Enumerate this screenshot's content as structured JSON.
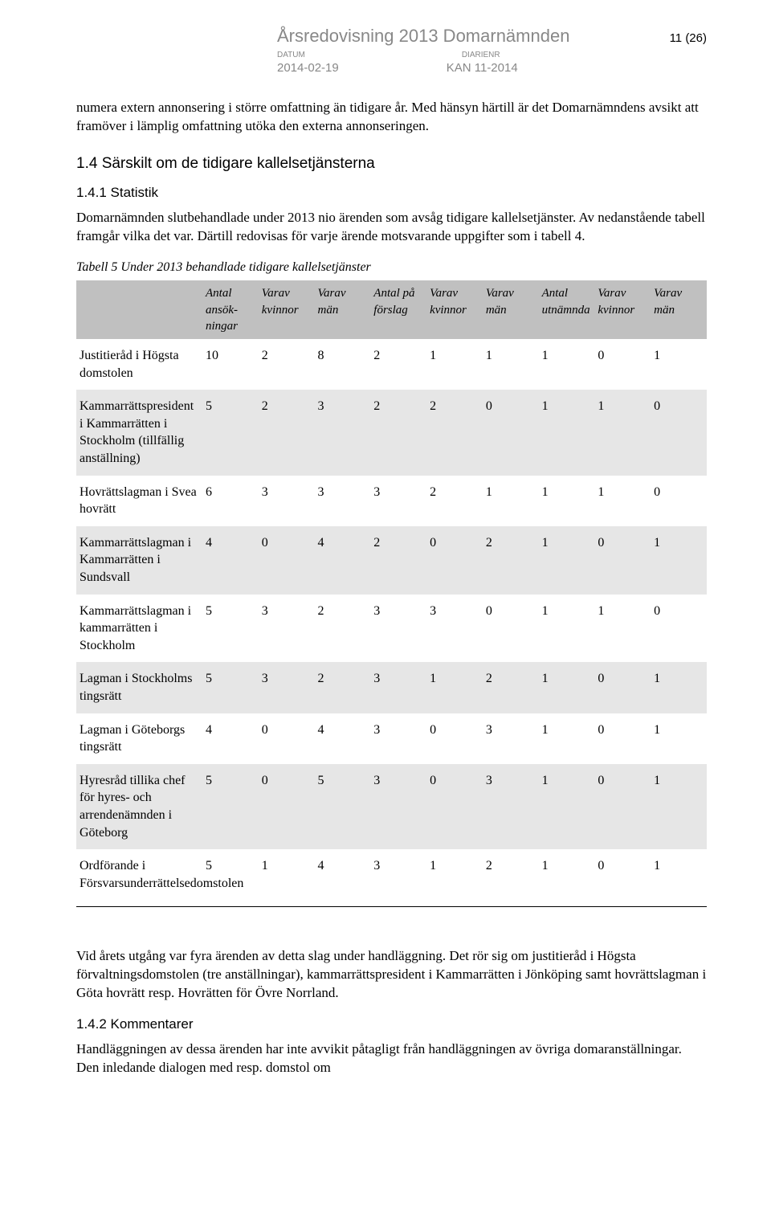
{
  "header": {
    "title": "Årsredovisning 2013 Domarnämnden",
    "page_no": "11 (26)",
    "label_date": "DATUM",
    "label_diary": "DIARIENR",
    "value_date": "2014-02-19",
    "value_diary": "KAN 11-2014"
  },
  "intro_para": "numera extern annonsering i större omfattning än tidigare år. Med hänsyn härtill är det Domarnämndens avsikt att framöver i lämplig omfattning utöka den externa annonseringen.",
  "section_1_4_title": "1.4 Särskilt om de tidigare kallelsetjänsterna",
  "section_1_4_1_title": "1.4.1 Statistik",
  "section_1_4_1_para": "Domarnämnden slutbehandlade under 2013 nio ärenden som avsåg tidigare kallelsetjänster. Av nedanstående tabell framgår vilka det var. Därtill redovisas för varje ärende motsvarande uppgifter som i tabell 4.",
  "table_caption": "Tabell 5 Under 2013 behandlade tidigare kallelsetjänster",
  "table": {
    "columns": [
      "",
      "Antal ansök-ningar",
      "Varav kvinnor",
      "Varav män",
      "Antal på förslag",
      "Varav kvinnor",
      "Varav män",
      "Antal utnämnda",
      "Varav kvinnor",
      "Varav män"
    ],
    "rows": [
      [
        "Justitieråd i Högsta domstolen",
        "10",
        "2",
        "8",
        "2",
        "1",
        "1",
        "1",
        "0",
        "1"
      ],
      [
        "Kammarrättspresident i Kammarrätten i Stockholm (tillfällig anställning)",
        "5",
        "2",
        "3",
        "2",
        "2",
        "0",
        "1",
        "1",
        "0"
      ],
      [
        "Hovrättslagman i Svea hovrätt",
        "6",
        "3",
        "3",
        "3",
        "2",
        "1",
        "1",
        "1",
        "0"
      ],
      [
        "Kammarrättslagman i Kammarrätten i Sundsvall",
        "4",
        "0",
        "4",
        "2",
        "0",
        "2",
        "1",
        "0",
        "1"
      ],
      [
        "Kammarrättslagman i kammarrätten i Stockholm",
        "5",
        "3",
        "2",
        "3",
        "3",
        "0",
        "1",
        "1",
        "0"
      ],
      [
        "Lagman i Stockholms tingsrätt",
        "5",
        "3",
        "2",
        "3",
        "1",
        "2",
        "1",
        "0",
        "1"
      ],
      [
        "Lagman i Göteborgs tingsrätt",
        "4",
        "0",
        "4",
        "3",
        "0",
        "3",
        "1",
        "0",
        "1"
      ],
      [
        "Hyresråd tillika chef för hyres- och arrendenämnden i Göteborg",
        "5",
        "0",
        "5",
        "3",
        "0",
        "3",
        "1",
        "0",
        "1"
      ],
      [
        "Ordförande i Försvarsunderrättelsedomstolen",
        "5",
        "1",
        "4",
        "3",
        "1",
        "2",
        "1",
        "0",
        "1"
      ]
    ],
    "shaded_rows": [
      1,
      3,
      5,
      7
    ]
  },
  "closing_para": "Vid årets utgång var fyra ärenden av detta slag under handläggning. Det rör sig om justitieråd i Högsta förvaltningsdomstolen (tre anställningar), kammarrättspresident i Kammarrätten i Jönköping samt hovrättslagman i Göta hovrätt resp. Hovrätten för Övre Norrland.",
  "section_1_4_2_title": "1.4.2 Kommentarer",
  "section_1_4_2_para": "Handläggningen av dessa ärenden har inte avvikit påtagligt från handläggningen av övriga domaranställningar. Den inledande dialogen med resp. domstol om"
}
